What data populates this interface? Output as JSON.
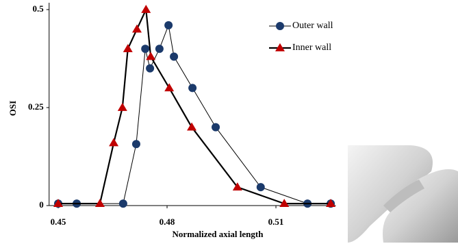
{
  "chart_data": {
    "type": "line",
    "x_label": "Normalized axial length",
    "y_label": "OSI",
    "xlim": [
      0.4475,
      0.5265
    ],
    "xticks": [
      0.45,
      0.48,
      0.51
    ],
    "ylim": [
      0,
      0.5
    ],
    "yticks": [
      0,
      0.25,
      0.5
    ],
    "series": [
      {
        "name": "Outer wall",
        "color": "#1b3a6b",
        "marker": "circle",
        "line_width": 1,
        "x": [
          0.45,
          0.4551,
          0.4679,
          0.4715,
          0.474,
          0.4753,
          0.4779,
          0.4804,
          0.4819,
          0.487,
          0.4934,
          0.5058,
          0.5187,
          0.5251
        ],
        "values": [
          0.005,
          0.005,
          0.005,
          0.157,
          0.4,
          0.35,
          0.4,
          0.46,
          0.38,
          0.3,
          0.2,
          0.047,
          0.005,
          0.005
        ]
      },
      {
        "name": "Inner wall",
        "color": "#c00000",
        "marker": "triangle",
        "line_width": 2.2,
        "x": [
          0.45,
          0.4615,
          0.4653,
          0.4677,
          0.4692,
          0.4717,
          0.4742,
          0.4755,
          0.4806,
          0.4868,
          0.4994,
          0.5123,
          0.5251
        ],
        "values": [
          0.005,
          0.005,
          0.16,
          0.25,
          0.4,
          0.45,
          0.5,
          0.38,
          0.3,
          0.2,
          0.047,
          0.005,
          0.005
        ]
      }
    ]
  }
}
